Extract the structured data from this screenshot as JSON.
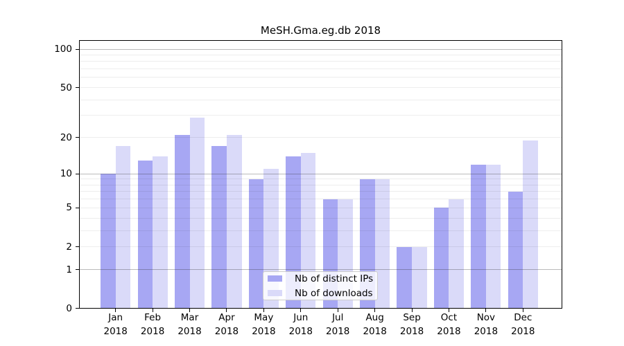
{
  "figure": {
    "title": "MeSH.Gma.eg.db 2018"
  },
  "chart_data": {
    "type": "bar",
    "title": "MeSH.Gma.eg.db 2018",
    "categories": [
      "Jan",
      "Feb",
      "Mar",
      "Apr",
      "May",
      "Jun",
      "Jul",
      "Aug",
      "Sep",
      "Oct",
      "Nov",
      "Dec"
    ],
    "year": "2018",
    "series": [
      {
        "name": "Nb of distinct IPs",
        "color": "#a7a7f3",
        "values": [
          10,
          13,
          21,
          17,
          9,
          14,
          6,
          9,
          2,
          5,
          12,
          7
        ]
      },
      {
        "name": "Nb of downloads",
        "color": "#dadaf9",
        "values": [
          17,
          14,
          29,
          21,
          11,
          15,
          6,
          9,
          2,
          6,
          12,
          19
        ]
      }
    ],
    "y_axis": {
      "scale": "log1p",
      "tick_values": [
        0,
        1,
        2,
        5,
        10,
        20,
        50,
        100
      ],
      "major_gridlines": [
        1,
        10,
        100
      ],
      "minor_gridlines": [
        2,
        3,
        4,
        5,
        6,
        7,
        8,
        9,
        20,
        30,
        40,
        50,
        60,
        70,
        80,
        90
      ],
      "range_max": 100
    },
    "x_axis": {
      "label_format": "month over year"
    },
    "legend": {
      "position": "bottom-center",
      "entries": [
        "Nb of distinct IPs",
        "Nb of downloads"
      ]
    },
    "grid": "on",
    "background": "#ffffff"
  }
}
